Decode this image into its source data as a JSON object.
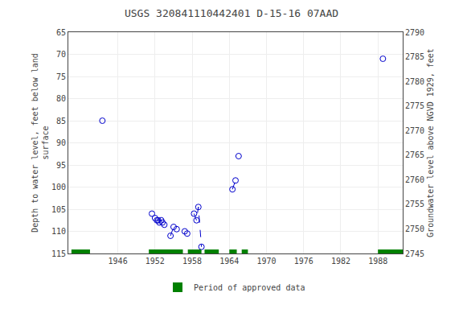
{
  "chart_data": {
    "type": "scatter",
    "title": "USGS 320841110442401 D-15-16 07AAD",
    "y_label": "Depth to water level, feet below land\nsurface",
    "y2_label": "Groundwater level above NGVD 1929, feet",
    "series": [
      {
        "type": "line",
        "line_style": "dashed",
        "color": "#0000cc",
        "x": [
          1954.5,
          1955.0,
          null,
          1958.3,
          1958.7,
          1959.0,
          1959.5,
          null,
          1964.5,
          1965.0
        ],
        "values": [
          111.0,
          109.0,
          null,
          106.0,
          107.5,
          104.5,
          113.5,
          null,
          100.5,
          98.5
        ]
      },
      {
        "type": "scatter",
        "marker": "circle-open",
        "color": "#0000cc",
        "x": [
          1943.5,
          1951.5,
          1952.0,
          1952.3,
          1952.5,
          1952.7,
          1953.0,
          1953.2,
          1953.5,
          1954.5,
          1955.0,
          1955.5,
          1956.8,
          1957.2,
          1958.3,
          1958.7,
          1959.0,
          1959.5,
          1964.5,
          1965.0,
          1965.5,
          1988.8
        ],
        "values": [
          85.0,
          106.0,
          107.0,
          107.5,
          107.5,
          108.0,
          107.5,
          108.0,
          108.5,
          111.0,
          109.0,
          109.5,
          110.0,
          110.5,
          106.0,
          107.5,
          104.5,
          113.5,
          100.5,
          98.5,
          93.0,
          71.0
        ]
      }
    ],
    "approved_periods": {
      "name": "Period of approved data",
      "color": "#008000",
      "periods": [
        [
          1938.5,
          1941.5
        ],
        [
          1951.0,
          1956.5
        ],
        [
          1957.3,
          1959.5
        ],
        [
          1960.0,
          1962.3
        ],
        [
          1964.0,
          1965.2
        ],
        [
          1966.0,
          1967.0
        ],
        [
          1988.0,
          1992.0
        ]
      ]
    },
    "xlim": [
      1938,
      1992
    ],
    "xticks": [
      1946,
      1952,
      1958,
      1964,
      1970,
      1976,
      1982,
      1988
    ],
    "ylim": [
      115,
      65
    ],
    "yticks": [
      65,
      70,
      75,
      80,
      85,
      90,
      95,
      100,
      105,
      110,
      115
    ],
    "y2lim": [
      2745,
      2790
    ],
    "y2ticks": [
      2745,
      2750,
      2755,
      2760,
      2765,
      2770,
      2775,
      2780,
      2785,
      2790
    ],
    "grid": true,
    "legend": "bottom"
  }
}
